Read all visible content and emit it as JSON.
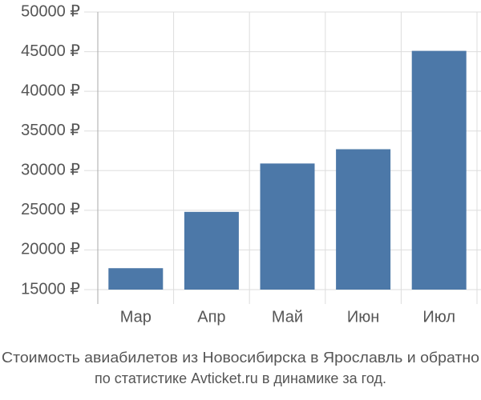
{
  "chart_data": {
    "type": "bar",
    "title": "Стоимость авиабилетов из Новосибирска в Ярославль и обратно",
    "subtitle": "по статистике Avticket.ru в динамике за год.",
    "categories": [
      "Мар",
      "Апр",
      "Май",
      "Июн",
      "Июл"
    ],
    "values": [
      17700,
      24800,
      30900,
      32700,
      45100
    ],
    "color": "#4c78a8",
    "ylim": [
      15000,
      50000
    ],
    "yticks": [
      {
        "value": 15000,
        "label": "15000 ₽"
      },
      {
        "value": 20000,
        "label": "20000 ₽"
      },
      {
        "value": 25000,
        "label": "25000 ₽"
      },
      {
        "value": 30000,
        "label": "30000 ₽"
      },
      {
        "value": 35000,
        "label": "35000 ₽"
      },
      {
        "value": 40000,
        "label": "40000 ₽"
      },
      {
        "value": 45000,
        "label": "45000 ₽"
      },
      {
        "value": 50000,
        "label": "50000 ₽"
      }
    ],
    "grid": true
  }
}
